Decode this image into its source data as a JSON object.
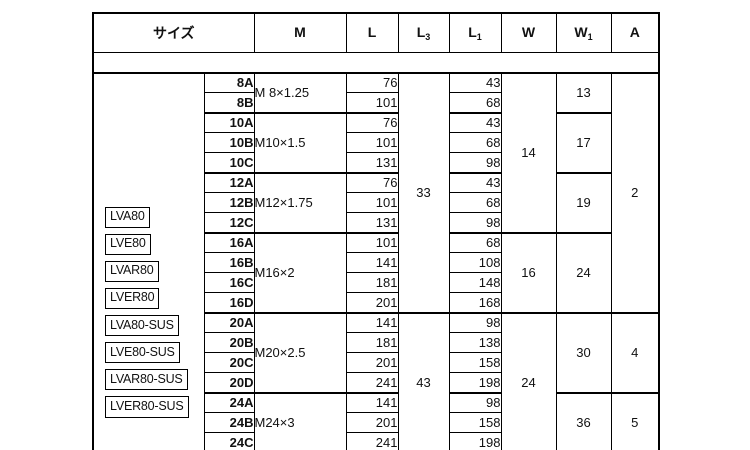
{
  "table": {
    "header": [
      {
        "label": "サイズ",
        "sub": ""
      },
      {
        "label": "M",
        "sub": ""
      },
      {
        "label": "L",
        "sub": ""
      },
      {
        "label": "L",
        "sub": "3"
      },
      {
        "label": "L",
        "sub": "1"
      },
      {
        "label": "W",
        "sub": ""
      },
      {
        "label": "W",
        "sub": "1"
      },
      {
        "label": "A",
        "sub": ""
      }
    ],
    "side_labels": [
      "LVA80",
      "LVE80",
      "LVAR80",
      "LVER80",
      "LVA80-SUS",
      "LVE80-SUS",
      "LVAR80-SUS",
      "LVER80-SUS"
    ],
    "groups": [
      {
        "m": "M 8×1.25",
        "rows": [
          {
            "size": "8A",
            "l": "76",
            "l1": "43"
          },
          {
            "size": "8B",
            "l": "101",
            "l1": "68"
          }
        ]
      },
      {
        "m": "M10×1.5",
        "rows": [
          {
            "size": "10A",
            "l": "76",
            "l1": "43"
          },
          {
            "size": "10B",
            "l": "101",
            "l1": "68"
          },
          {
            "size": "10C",
            "l": "131",
            "l1": "98"
          }
        ]
      },
      {
        "m": "M12×1.75",
        "rows": [
          {
            "size": "12A",
            "l": "76",
            "l1": "43"
          },
          {
            "size": "12B",
            "l": "101",
            "l1": "68"
          },
          {
            "size": "12C",
            "l": "131",
            "l1": "98"
          }
        ]
      },
      {
        "m": "M16×2",
        "rows": [
          {
            "size": "16A",
            "l": "101",
            "l1": "68"
          },
          {
            "size": "16B",
            "l": "141",
            "l1": "108"
          },
          {
            "size": "16C",
            "l": "181",
            "l1": "148"
          },
          {
            "size": "16D",
            "l": "201",
            "l1": "168"
          }
        ]
      },
      {
        "m": "M20×2.5",
        "rows": [
          {
            "size": "20A",
            "l": "141",
            "l1": "98"
          },
          {
            "size": "20B",
            "l": "181",
            "l1": "138"
          },
          {
            "size": "20C",
            "l": "201",
            "l1": "158"
          },
          {
            "size": "20D",
            "l": "241",
            "l1": "198"
          }
        ]
      },
      {
        "m": "M24×3",
        "rows": [
          {
            "size": "24A",
            "l": "141",
            "l1": "98"
          },
          {
            "size": "24B",
            "l": "201",
            "l1": "158"
          },
          {
            "size": "24C",
            "l": "241",
            "l1": "198"
          }
        ]
      }
    ],
    "merged": {
      "l3": [
        {
          "value": "33",
          "start": 0,
          "span": 12
        },
        {
          "value": "43",
          "start": 12,
          "span": 7
        }
      ],
      "w": [
        {
          "value": "14",
          "start": 0,
          "span": 8
        },
        {
          "value": "16",
          "start": 8,
          "span": 4
        },
        {
          "value": "24",
          "start": 12,
          "span": 7
        }
      ],
      "w1": [
        {
          "value": "13",
          "start": 0,
          "span": 2
        },
        {
          "value": "17",
          "start": 2,
          "span": 3
        },
        {
          "value": "19",
          "start": 5,
          "span": 3
        },
        {
          "value": "24",
          "start": 8,
          "span": 4
        },
        {
          "value": "30",
          "start": 12,
          "span": 4
        },
        {
          "value": "36",
          "start": 16,
          "span": 3
        }
      ],
      "a": [
        {
          "value": "2",
          "start": 0,
          "span": 12
        },
        {
          "value": "4",
          "start": 12,
          "span": 4
        },
        {
          "value": "5",
          "start": 16,
          "span": 3
        }
      ]
    }
  }
}
